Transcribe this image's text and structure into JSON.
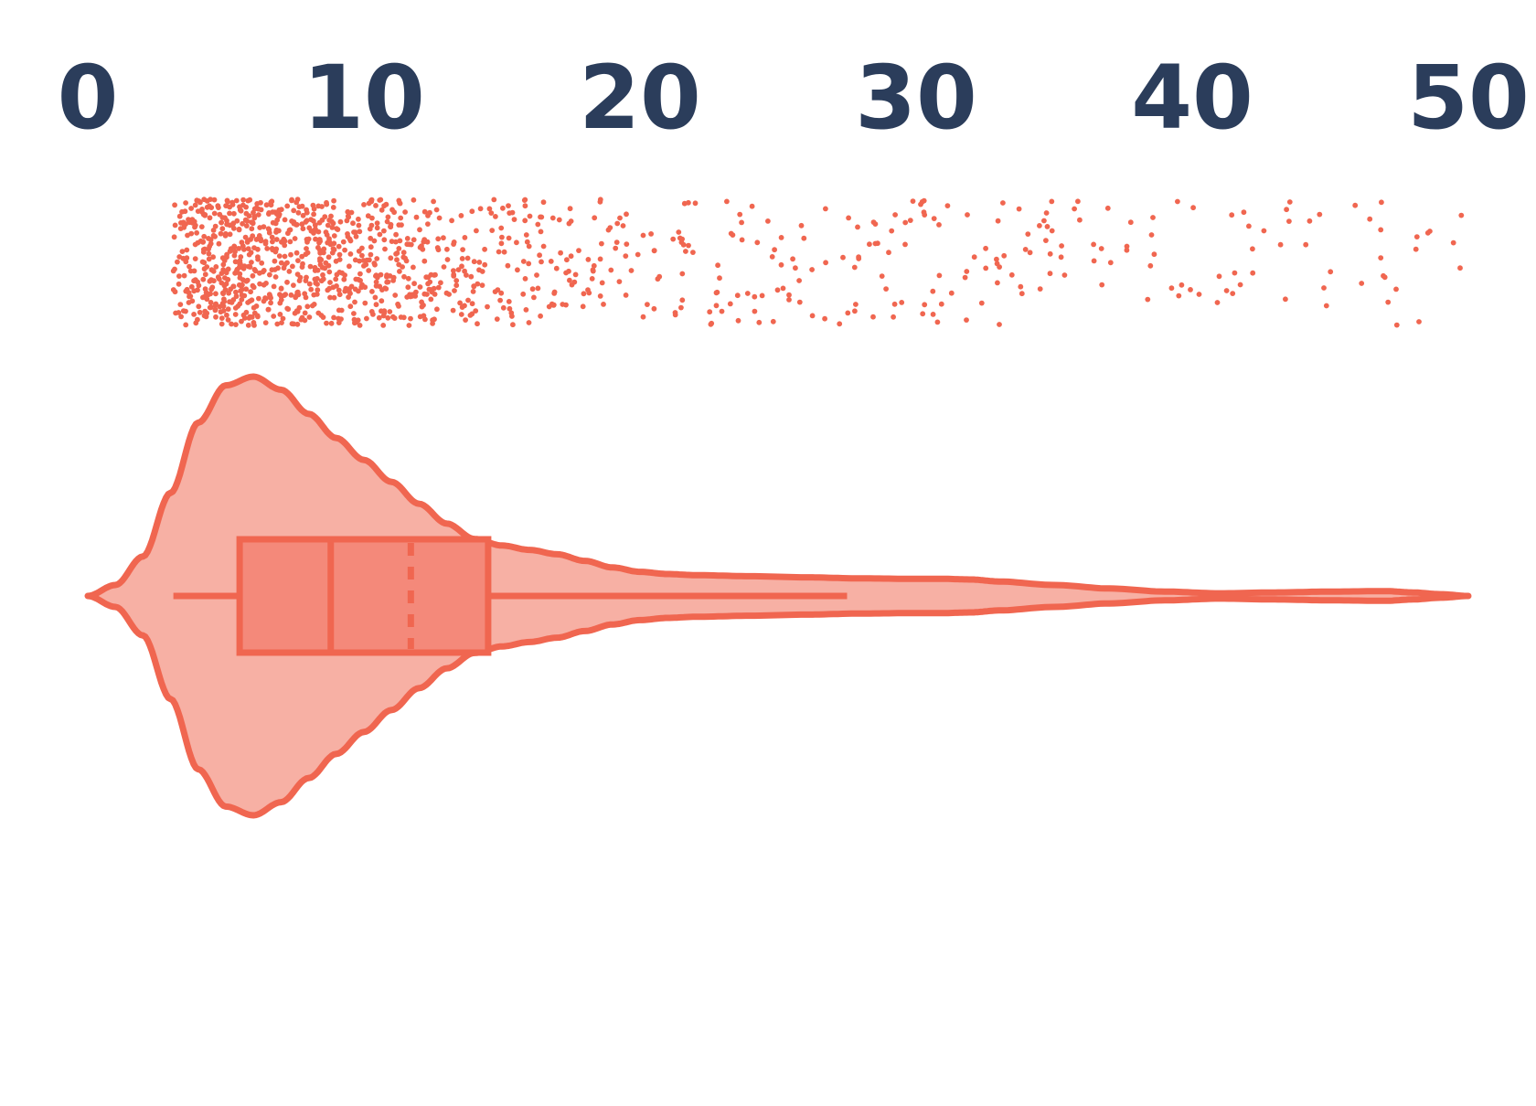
{
  "colors": {
    "accent": "#f06650",
    "violin_fill": "#f7b0a4",
    "box_fill": "#f4897a",
    "axis_text": "#2b3d5b",
    "background": "#ffffff"
  },
  "chart_data": {
    "type": "violin",
    "title": "",
    "xlabel": "",
    "ylabel": "",
    "xlim": [
      0,
      50
    ],
    "x_axis_position": "top",
    "grid": false,
    "ticks": [
      0,
      10,
      20,
      30,
      40,
      50
    ],
    "tick_labels": [
      "0",
      "10",
      "20",
      "30",
      "40",
      "50"
    ],
    "box": {
      "whisker_low": 3.1,
      "q1": 5.5,
      "median": 8.8,
      "mean": 11.7,
      "q3": 14.5,
      "whisker_high": 27.5
    },
    "violin": {
      "min": 0,
      "max": 50,
      "density_profile": [
        [
          0,
          0.0
        ],
        [
          1,
          0.05
        ],
        [
          2,
          0.18
        ],
        [
          3,
          0.47
        ],
        [
          4,
          0.79
        ],
        [
          5,
          0.96
        ],
        [
          6,
          1.0
        ],
        [
          7,
          0.94
        ],
        [
          8,
          0.83
        ],
        [
          9,
          0.72
        ],
        [
          10,
          0.62
        ],
        [
          11,
          0.52
        ],
        [
          12,
          0.42
        ],
        [
          13,
          0.33
        ],
        [
          14,
          0.26
        ],
        [
          15,
          0.23
        ],
        [
          16,
          0.21
        ],
        [
          17,
          0.19
        ],
        [
          18,
          0.16
        ],
        [
          19,
          0.13
        ],
        [
          20,
          0.11
        ],
        [
          21,
          0.1
        ],
        [
          22,
          0.095
        ],
        [
          24,
          0.09
        ],
        [
          26,
          0.085
        ],
        [
          28,
          0.08
        ],
        [
          30,
          0.078
        ],
        [
          31,
          0.078
        ],
        [
          32,
          0.075
        ],
        [
          33,
          0.066
        ],
        [
          35,
          0.05
        ],
        [
          37,
          0.034
        ],
        [
          39,
          0.02
        ],
        [
          41,
          0.012
        ],
        [
          43,
          0.016
        ],
        [
          45,
          0.02
        ],
        [
          47,
          0.022
        ],
        [
          48,
          0.016
        ],
        [
          49,
          0.008
        ],
        [
          50,
          0.0
        ]
      ]
    },
    "points": {
      "count": 1200,
      "x_min": 3.1,
      "x_max": 49.8
    }
  }
}
